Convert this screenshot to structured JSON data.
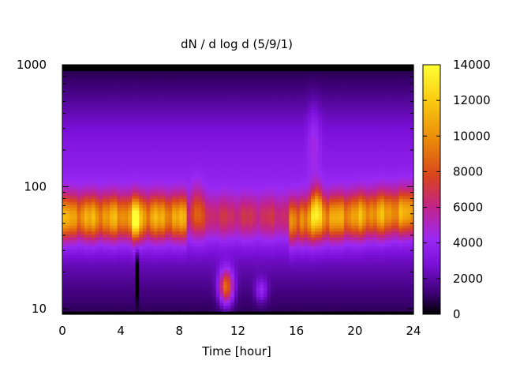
{
  "chart_data": {
    "type": "heatmap",
    "title": "dN / d log d (5/9/1)",
    "xlabel": "Time [hour]",
    "ylabel": "",
    "xlim": [
      0,
      24
    ],
    "ylim": [
      9,
      1000
    ],
    "yscale": "log",
    "x_ticks": [
      "0",
      "4",
      "8",
      "12",
      "16",
      "20",
      "24"
    ],
    "y_ticks": [
      "10",
      "100",
      "1000"
    ],
    "colorbar": {
      "range": [
        0,
        14000
      ],
      "ticks": [
        "0",
        "2000",
        "4000",
        "6000",
        "8000",
        "10000",
        "12000",
        "14000"
      ],
      "palette": [
        "#000000",
        "#3a0070",
        "#7a10d8",
        "#9a28f4",
        "#c2238a",
        "#d8431e",
        "#ea8a08",
        "#f9c810",
        "#ffff33"
      ]
    },
    "grid": false,
    "features": [
      {
        "x": [
          0,
          24
        ],
        "y_center": 55,
        "value": 7500,
        "note": "persistent mode band"
      },
      {
        "x": [
          4.8,
          5.4
        ],
        "y_center": 50,
        "value": 11000
      },
      {
        "x": [
          10.8,
          11.6
        ],
        "y_center": 15,
        "value": 10500
      },
      {
        "x": [
          13.2,
          14.0
        ],
        "y_center": 14,
        "value": 6000
      },
      {
        "x": [
          17.1,
          17.7
        ],
        "y_center": 65,
        "value": 11000
      }
    ]
  }
}
